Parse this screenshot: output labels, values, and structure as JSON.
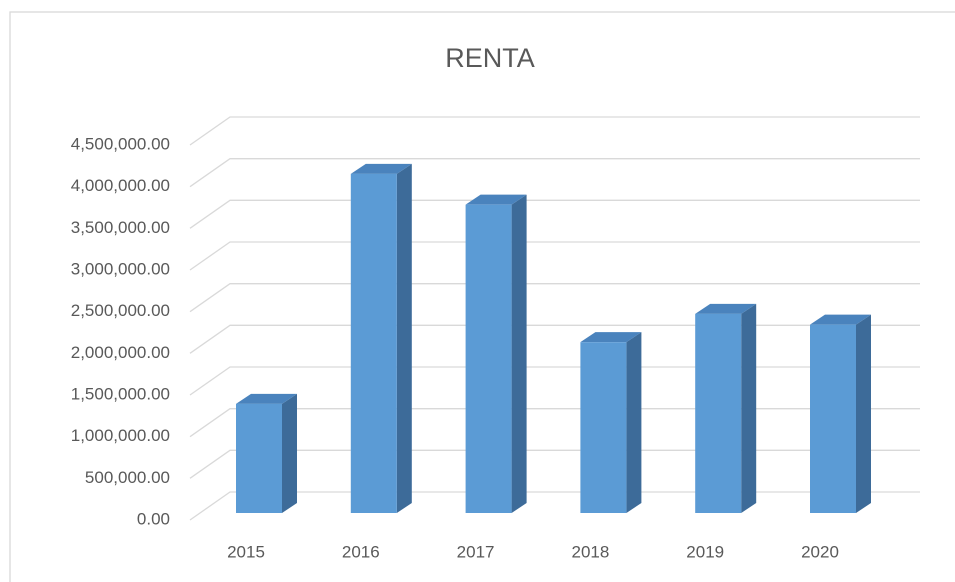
{
  "chart_data": {
    "type": "bar3d",
    "title": "RENTA",
    "categories": [
      "2015",
      "2016",
      "2017",
      "2018",
      "2019",
      "2020"
    ],
    "values": [
      1310000,
      4070000,
      3700000,
      2050000,
      2390000,
      2260000
    ],
    "color": "#5b9bd5",
    "ylim": [
      0,
      4500000
    ],
    "yticks": [
      {
        "value": 0,
        "label": "0.00"
      },
      {
        "value": 500000,
        "label": "500,000.00"
      },
      {
        "value": 1000000,
        "label": "1,000,000.00"
      },
      {
        "value": 1500000,
        "label": "1,500,000.00"
      },
      {
        "value": 2000000,
        "label": "2,000,000.00"
      },
      {
        "value": 2500000,
        "label": "2,500,000.00"
      },
      {
        "value": 3000000,
        "label": "3,000,000.00"
      },
      {
        "value": 3500000,
        "label": "3,500,000.00"
      },
      {
        "value": 4000000,
        "label": "4,000,000.00"
      },
      {
        "value": 4500000,
        "label": "4,500,000.00"
      }
    ],
    "grid": true
  }
}
